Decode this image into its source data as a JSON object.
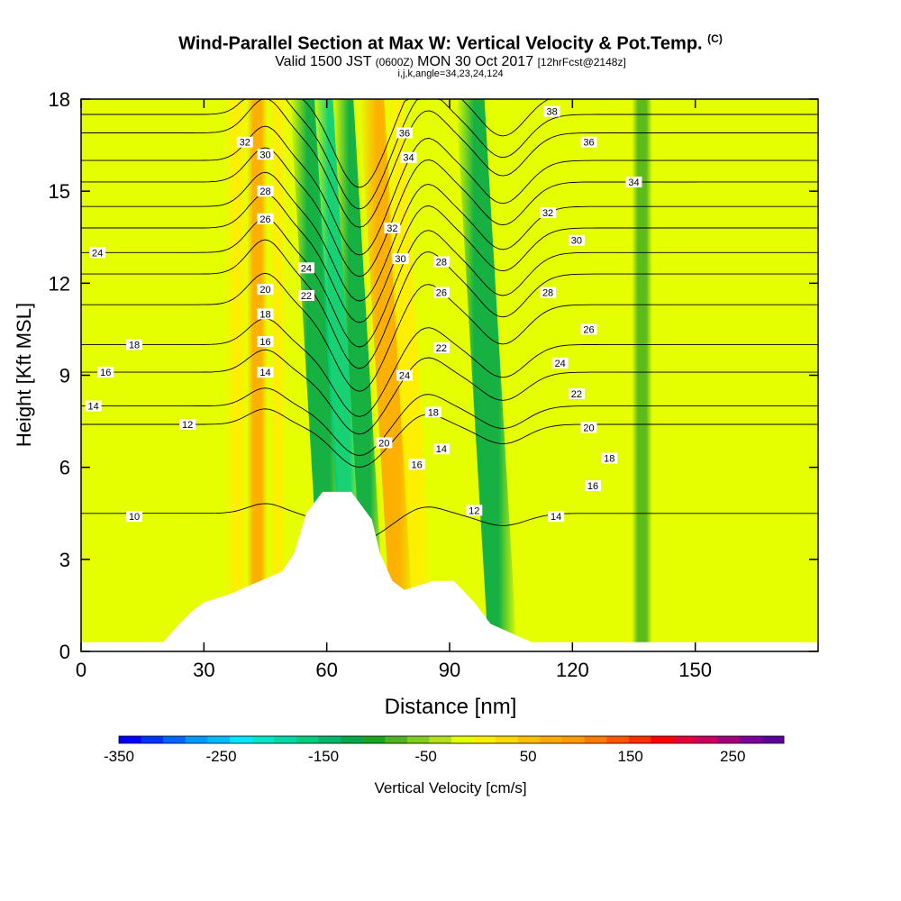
{
  "header": {
    "title": "Wind-Parallel Section at Max W: Vertical Velocity & Pot.Temp.",
    "title_tag": "(C)",
    "valid_prefix": "Valid 1500 JST",
    "valid_utc": "(0600Z)",
    "valid_date": "MON 30 Oct 2017",
    "forecast_tag": "[12hrFcst@2148z]",
    "grid_info": "i,j,k,angle=34,23,24,124"
  },
  "chart_data": {
    "type": "contour-section",
    "xlabel": "Distance [nm]",
    "ylabel": "Height [Kft MSL]",
    "xlim": [
      0,
      180
    ],
    "ylim": [
      0,
      18
    ],
    "x_ticks": [
      0,
      30,
      60,
      90,
      120,
      150
    ],
    "y_ticks": [
      0,
      3,
      6,
      9,
      12,
      15,
      18
    ],
    "x_tick_labels": [
      "0",
      "30",
      "60",
      "90",
      "120",
      "150"
    ],
    "y_tick_labels": [
      "0",
      "3",
      "6",
      "9",
      "12",
      "15",
      "18"
    ],
    "background_fill_level": 25,
    "velocity_bands": [
      {
        "x": 9,
        "width": 6,
        "w": 40
      },
      {
        "x": 38,
        "width": 5,
        "w": 60
      },
      {
        "x": 43,
        "width": 5,
        "w": 140
      },
      {
        "x": 48,
        "width": 4,
        "w": 50
      },
      {
        "x": 62,
        "width": 6,
        "w": -90
      },
      {
        "x": 67,
        "width": 5,
        "w": -140
      },
      {
        "x": 72,
        "width": 5,
        "w": -90
      },
      {
        "x": 79,
        "width": 6,
        "w": 140
      },
      {
        "x": 84,
        "width": 5,
        "w": 70
      },
      {
        "x": 103,
        "width": 7,
        "w": -90
      },
      {
        "x": 118,
        "width": 4,
        "w": 40
      },
      {
        "x": 137,
        "width": 5,
        "w": -30
      },
      {
        "x": 163,
        "width": 4,
        "w": 40
      }
    ],
    "terrain": [
      [
        0,
        0.3
      ],
      [
        20,
        0.3
      ],
      [
        22,
        0.6
      ],
      [
        24,
        0.9
      ],
      [
        27,
        1.3
      ],
      [
        30,
        1.6
      ],
      [
        37,
        1.9
      ],
      [
        42,
        2.2
      ],
      [
        49,
        2.6
      ],
      [
        52,
        3.2
      ],
      [
        55,
        4.5
      ],
      [
        59,
        5.2
      ],
      [
        66,
        5.2
      ],
      [
        71,
        4.3
      ],
      [
        73,
        3.2
      ],
      [
        76,
        2.3
      ],
      [
        79,
        2.0
      ],
      [
        86,
        2.3
      ],
      [
        91,
        2.3
      ],
      [
        96,
        1.6
      ],
      [
        100,
        0.9
      ],
      [
        105,
        0.6
      ],
      [
        110,
        0.3
      ],
      [
        180,
        0.3
      ]
    ],
    "theta_contours": [
      {
        "level": 10,
        "base": 4.5,
        "labels": [
          [
            13,
            4.4
          ]
        ]
      },
      {
        "level": 12,
        "base": 7.4,
        "labels": [
          [
            26,
            7.4
          ],
          [
            96,
            4.6
          ]
        ]
      },
      {
        "level": 14,
        "base": 8.0,
        "labels": [
          [
            3,
            8.0
          ],
          [
            45,
            9.1
          ],
          [
            88,
            6.6
          ],
          [
            116,
            4.4
          ]
        ]
      },
      {
        "level": 16,
        "base": 9.1,
        "labels": [
          [
            6,
            9.1
          ],
          [
            45,
            10.1
          ],
          [
            82,
            6.1
          ],
          [
            125,
            5.4
          ]
        ]
      },
      {
        "level": 18,
        "base": 10.0,
        "labels": [
          [
            13,
            10.0
          ],
          [
            45,
            11.0
          ],
          [
            86,
            7.8
          ],
          [
            129,
            6.3
          ]
        ]
      },
      {
        "level": 20,
        "base": 11.3,
        "labels": [
          [
            45,
            11.8
          ],
          [
            74,
            6.8
          ],
          [
            124,
            7.3
          ]
        ]
      },
      {
        "level": 22,
        "base": 12.3,
        "labels": [
          [
            55,
            11.6
          ],
          [
            88,
            9.9
          ],
          [
            121,
            8.4
          ]
        ]
      },
      {
        "level": 24,
        "base": 13.0,
        "labels": [
          [
            4,
            13.0
          ],
          [
            55,
            12.5
          ],
          [
            79,
            9.0
          ],
          [
            117,
            9.4
          ]
        ]
      },
      {
        "level": 26,
        "base": 13.8,
        "labels": [
          [
            45,
            14.1
          ],
          [
            88,
            11.7
          ],
          [
            124,
            10.5
          ]
        ]
      },
      {
        "level": 28,
        "base": 14.5,
        "labels": [
          [
            45,
            15.0
          ],
          [
            88,
            12.7
          ],
          [
            114,
            11.7
          ]
        ]
      },
      {
        "level": 30,
        "base": 15.3,
        "labels": [
          [
            45,
            16.2
          ],
          [
            78,
            12.8
          ],
          [
            121,
            13.4
          ]
        ]
      },
      {
        "level": 32,
        "base": 16.0,
        "labels": [
          [
            40,
            16.6
          ],
          [
            76,
            13.8
          ],
          [
            114,
            14.3
          ]
        ]
      },
      {
        "level": 34,
        "base": 16.9,
        "labels": [
          [
            80,
            16.1
          ],
          [
            135,
            15.3
          ]
        ]
      },
      {
        "level": 36,
        "base": 17.5,
        "labels": [
          [
            79,
            16.9
          ],
          [
            124,
            16.6
          ]
        ]
      },
      {
        "level": 38,
        "base": 18.2,
        "labels": [
          [
            115,
            17.6
          ]
        ]
      }
    ],
    "colorbar": {
      "label": "Vertical Velocity [cm/s]",
      "min": -350,
      "max": 275,
      "step": 25,
      "tick_values": [
        -350,
        -250,
        -150,
        -50,
        50,
        150,
        250
      ],
      "tick_labels": [
        "-350",
        "-250",
        "-150",
        "-50",
        "50",
        "150",
        "250"
      ],
      "colors": [
        "#0000ff",
        "#0033ff",
        "#0066ff",
        "#0099ff",
        "#00bbff",
        "#00e6ff",
        "#00e6cc",
        "#00d9a6",
        "#00cc80",
        "#00b86b",
        "#00a84a",
        "#1aa521",
        "#4db31e",
        "#80cc1f",
        "#b3e01a",
        "#e6ff00",
        "#ffee00",
        "#ffd800",
        "#ffbf00",
        "#ffa800",
        "#ff9900",
        "#ff7a00",
        "#ff5500",
        "#ff2e00",
        "#ff0000",
        "#e6003a",
        "#cc005c",
        "#a3007a",
        "#7a0099",
        "#5c0099"
      ]
    }
  }
}
